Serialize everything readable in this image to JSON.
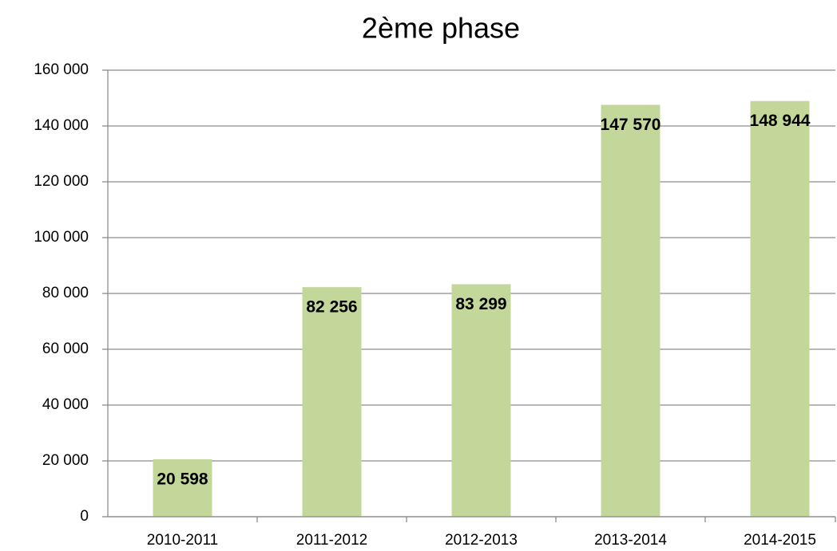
{
  "chart_data": {
    "type": "bar",
    "title": "2ème phase",
    "categories": [
      "2010-2011",
      "2011-2012",
      "2012-2013",
      "2013-2014",
      "2014-2015"
    ],
    "values": [
      20598,
      82256,
      83299,
      147570,
      148944
    ],
    "value_labels": [
      "20 598",
      "82 256",
      "83 299",
      "147 570",
      "148 944"
    ],
    "color": "#c4d79b",
    "ylim": [
      0,
      160000
    ],
    "yticks": [
      0,
      {
        "value": 20000,
        "label": "20 000"
      },
      {
        "value": 40000,
        "label": "40 000"
      },
      {
        "value": 60000,
        "label": "60 000"
      },
      {
        "value": 80000,
        "label": "80 000"
      },
      {
        "value": 100000,
        "label": "100 000"
      },
      {
        "value": 120000,
        "label": "120 000"
      },
      {
        "value": 140000,
        "label": "140 000"
      },
      {
        "value": 160000,
        "label": "160 000"
      }
    ],
    "grid": true
  }
}
